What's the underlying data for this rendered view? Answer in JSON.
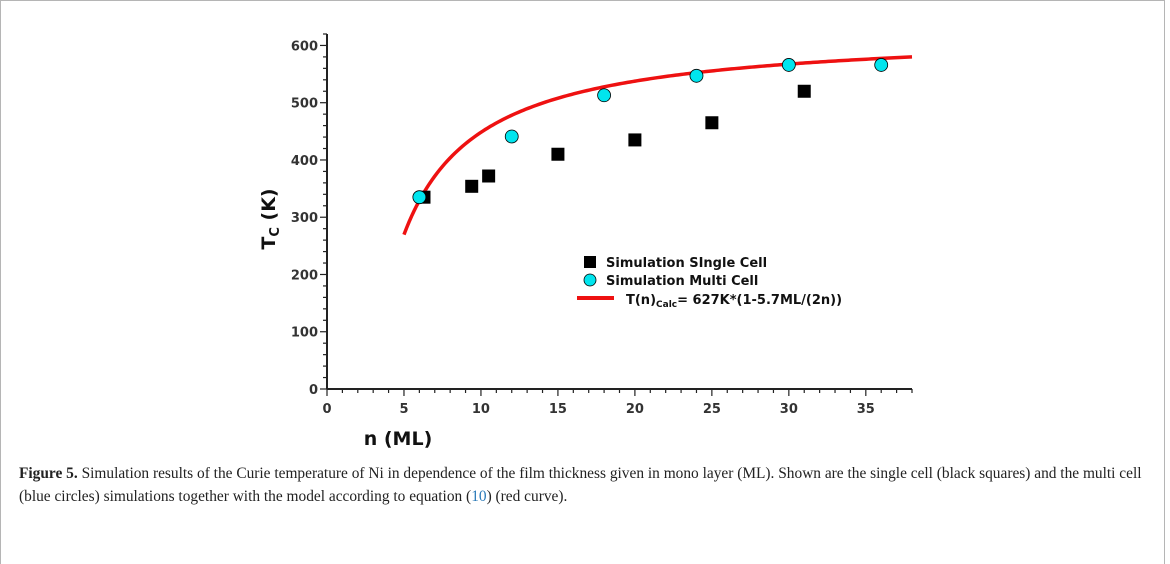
{
  "chart_data": {
    "type": "scatter",
    "title": "",
    "xlabel": "n (ML)",
    "ylabel": "T",
    "ylabel_sub": "C",
    "ylabel_unit": " (K)",
    "xlim": [
      0,
      38
    ],
    "ylim": [
      0,
      620
    ],
    "x_major_ticks": [
      0,
      5,
      10,
      15,
      20,
      25,
      30,
      35
    ],
    "x_minor_step": 1,
    "y_major_ticks": [
      0,
      100,
      200,
      300,
      400,
      500,
      600
    ],
    "y_minor_step": 20,
    "grid": false,
    "legend_position": "center-right",
    "series": [
      {
        "name": "Simulation SIngle Cell",
        "marker": "square",
        "color": "#000000",
        "x": [
          6.3,
          9.4,
          10.5,
          15,
          20,
          25,
          31
        ],
        "y": [
          335,
          354,
          372,
          410,
          435,
          465,
          520
        ]
      },
      {
        "name": "Simulation Multi Cell",
        "marker": "circle",
        "color": "#00e5ee",
        "x": [
          6,
          12,
          18,
          24,
          30,
          36
        ],
        "y": [
          335,
          441,
          513,
          547,
          566,
          566
        ]
      }
    ],
    "curve": {
      "name_main": "T(n)",
      "name_sub": "Calc",
      "name_rest": "= 627K*(1-5.7ML/(2n))",
      "color": "#ee1111",
      "T0": 627,
      "n0": 5.7,
      "x_start": 5,
      "x_end": 38
    }
  },
  "caption": {
    "label": "Figure 5.",
    "text_before": " Simulation results of the Curie temperature of Ni in dependence of the film thickness given in mono layer (ML). Shown are the single cell (black squares) and the multi cell (blue circles) simulations together with the model according to equation (",
    "eq_ref": "10",
    "text_after": ") (red curve)."
  }
}
